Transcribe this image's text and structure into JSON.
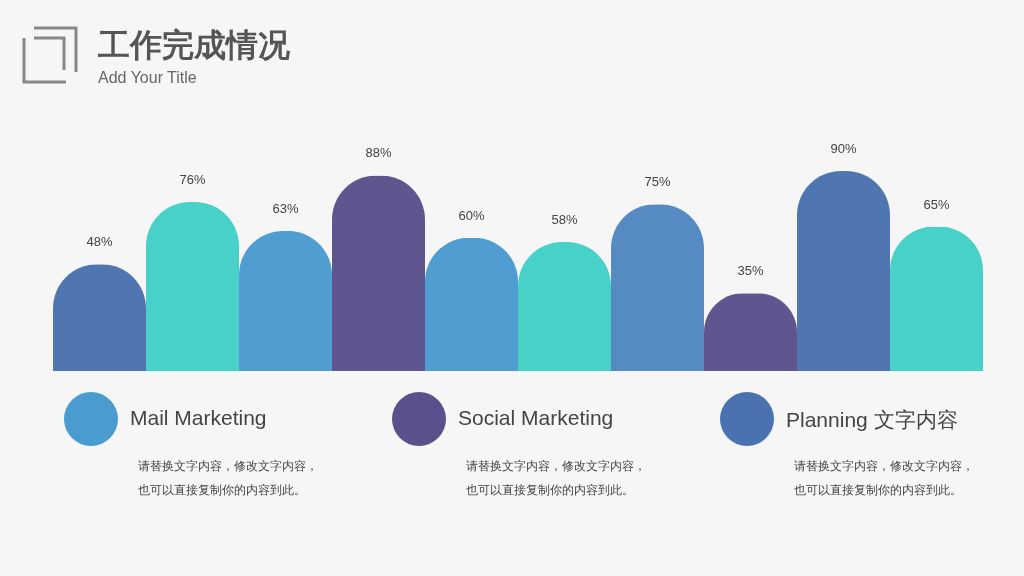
{
  "chart_data": {
    "type": "bar",
    "title": "工作完成情况",
    "subtitle": "Add Your Title",
    "categories": [
      null,
      null,
      null,
      null,
      null,
      null,
      null,
      null,
      null,
      null
    ],
    "values": [
      48,
      76,
      63,
      88,
      60,
      58,
      75,
      35,
      90,
      65
    ],
    "value_labels": [
      "48%",
      "76%",
      "63%",
      "88%",
      "60%",
      "58%",
      "75%",
      "35%",
      "90%",
      "65%"
    ],
    "colors": [
      "#4a72b0",
      "#41cfc6",
      "#4a9bd0",
      "#5a518c",
      "#4a9bd0",
      "#41cfc6",
      "#4f86c0",
      "#5a518c",
      "#4a72b0",
      "#41cfc6"
    ],
    "annotations": [
      "Mail Marketing",
      "请替换文字内容，修改文字内容，也可以直接复制你的内容到此。",
      "Social Marketing",
      "请替换文字内容，修改文字内容，也可以直接复制你的内容到此。",
      "Planning 文字内容",
      "请替换文字内容，修改文字内容，也可以直接复制你的内容到此。"
    ]
  }
}
